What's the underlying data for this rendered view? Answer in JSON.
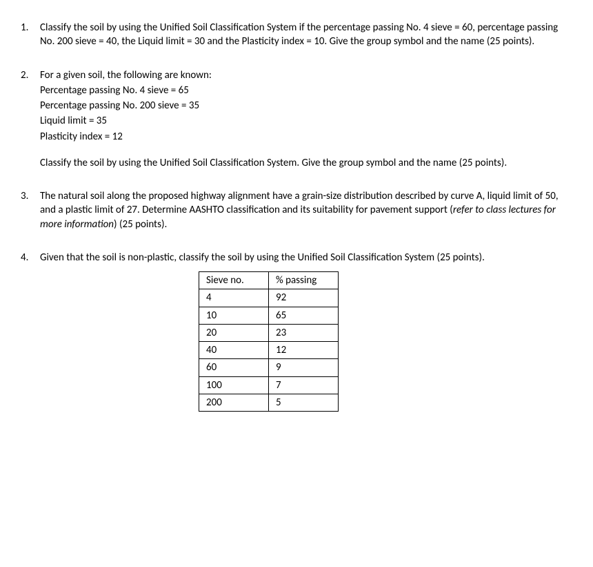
{
  "questions": [
    {
      "text": "Classify the soil by using the Unified Soil Classification System if the percentage passing No. 4 sieve = 60, percentage passing No. 200 sieve = 40, the Liquid limit = 30 and the Plasticity index = 10. Give the group symbol and the name (25 points)."
    },
    {
      "intro": "For a given soil, the following are known:",
      "lines": [
        "Percentage passing No. 4 sieve = 65",
        "Percentage passing No. 200 sieve = 35",
        "Liquid limit = 35",
        "Plasticity index = 12"
      ],
      "followup": "Classify the soil by using the Unified Soil Classification System. Give the group symbol and the name (25 points)."
    },
    {
      "text_pre": "The natural soil along the proposed highway alignment have a grain-size distribution described by curve A, liquid limit of 50, and a plastic limit of 27. Determine AASHTO classification and its suitability for pavement support (",
      "text_italic": "refer to class lectures for more information",
      "text_post": ") (25 points)."
    },
    {
      "text": "Given that the soil is non-plastic, classify the soil by using the Unified Soil Classification System (25 points).",
      "table": {
        "headers": [
          "Sieve no.",
          "% passing"
        ],
        "rows": [
          [
            "4",
            "92"
          ],
          [
            "10",
            "65"
          ],
          [
            "20",
            "23"
          ],
          [
            "40",
            "12"
          ],
          [
            "60",
            "9"
          ],
          [
            "100",
            "7"
          ],
          [
            "200",
            "5"
          ]
        ]
      }
    }
  ]
}
